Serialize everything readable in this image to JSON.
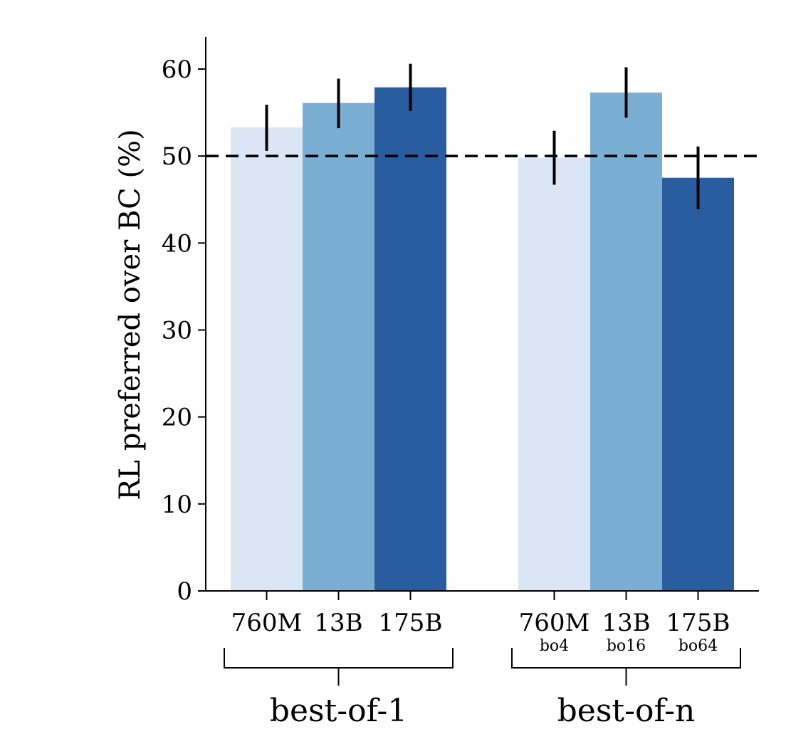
{
  "chart_data": {
    "type": "bar",
    "ylabel": "RL preferred over BC (%)",
    "xlabel": "",
    "ylim": [
      0,
      63
    ],
    "yticks": [
      0,
      10,
      20,
      30,
      40,
      50,
      60
    ],
    "grid": false,
    "reference_line": {
      "y": 50,
      "style": "dashed",
      "color": "#000000"
    },
    "groups": [
      {
        "label": "best-of-1",
        "bars": [
          {
            "category": "760M",
            "sublabel": "",
            "value": 53.3,
            "error": [
              50.6,
              55.9
            ],
            "color": "#dae6f3"
          },
          {
            "category": "13B",
            "sublabel": "",
            "value": 56.1,
            "error": [
              53.2,
              58.9
            ],
            "color": "#7aaed3"
          },
          {
            "category": "175B",
            "sublabel": "",
            "value": 57.9,
            "error": [
              55.2,
              60.6
            ],
            "color": "#2a5ca0"
          }
        ]
      },
      {
        "label": "best-of-n",
        "bars": [
          {
            "category": "760M",
            "sublabel": "bo4",
            "value": 49.8,
            "error": [
              46.7,
              52.9
            ],
            "color": "#dae6f3"
          },
          {
            "category": "13B",
            "sublabel": "bo16",
            "value": 57.3,
            "error": [
              54.4,
              60.2
            ],
            "color": "#7aaed3"
          },
          {
            "category": "175B",
            "sublabel": "bo64",
            "value": 47.5,
            "error": [
              43.9,
              51.1
            ],
            "color": "#2a5ca0"
          }
        ]
      }
    ]
  }
}
